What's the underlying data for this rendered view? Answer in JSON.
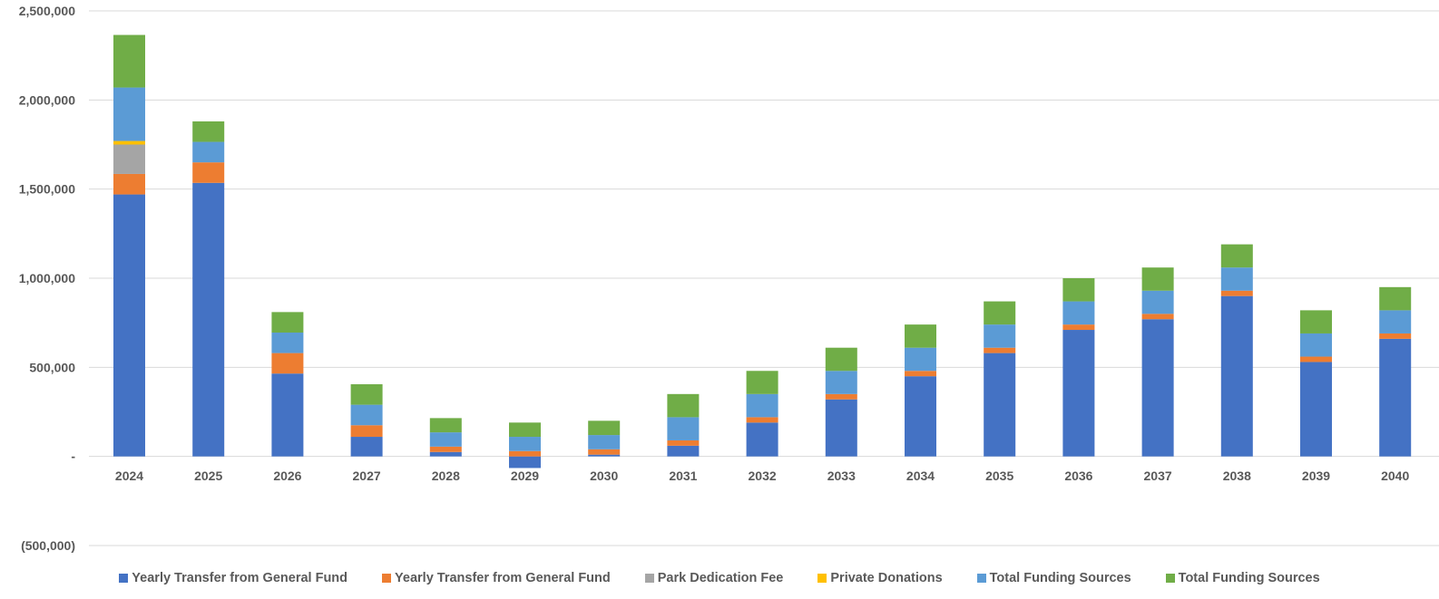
{
  "chart_data": {
    "type": "bar",
    "stacked": true,
    "title": "",
    "xlabel": "",
    "ylabel": "",
    "categories": [
      "2024",
      "2025",
      "2026",
      "2027",
      "2028",
      "2029",
      "2030",
      "2031",
      "2032",
      "2033",
      "2034",
      "2035",
      "2036",
      "2037",
      "2038",
      "2039",
      "2040"
    ],
    "ylim": [
      -500000,
      2500000
    ],
    "yticks": [
      {
        "value": 2500000,
        "label": "2,500,000"
      },
      {
        "value": 2000000,
        "label": "2,000,000"
      },
      {
        "value": 1500000,
        "label": "1,500,000"
      },
      {
        "value": 1000000,
        "label": "1,000,000"
      },
      {
        "value": 500000,
        "label": "500,000"
      },
      {
        "value": 0,
        "label": "-"
      },
      {
        "value": -500000,
        "label": "(500,000)"
      }
    ],
    "grid": true,
    "legend_position": "bottom",
    "series": [
      {
        "name": "Yearly Transfer from General Fund",
        "color": "#4472C4",
        "values": [
          1470000,
          1535000,
          465000,
          110000,
          25000,
          -65000,
          10000,
          60000,
          190000,
          320000,
          450000,
          580000,
          710000,
          770000,
          900000,
          530000,
          660000
        ]
      },
      {
        "name": "Yearly Transfer from General Fund",
        "color": "#ED7D31",
        "values": [
          115000,
          115000,
          115000,
          65000,
          30000,
          30000,
          30000,
          30000,
          30000,
          30000,
          30000,
          30000,
          30000,
          30000,
          30000,
          30000,
          30000
        ]
      },
      {
        "name": "Park Dedication Fee",
        "color": "#A5A5A5",
        "values": [
          165000,
          0,
          0,
          0,
          0,
          0,
          0,
          0,
          0,
          0,
          0,
          0,
          0,
          0,
          0,
          0,
          0
        ]
      },
      {
        "name": "Private Donations",
        "color": "#FFC000",
        "values": [
          20000,
          0,
          0,
          0,
          0,
          0,
          0,
          0,
          0,
          0,
          0,
          0,
          0,
          0,
          0,
          0,
          0
        ]
      },
      {
        "name": "Total Funding Sources",
        "color": "#5B9BD5",
        "values": [
          300000,
          115000,
          115000,
          115000,
          80000,
          80000,
          80000,
          130000,
          130000,
          130000,
          130000,
          130000,
          130000,
          130000,
          130000,
          130000,
          130000
        ]
      },
      {
        "name": "Total Funding Sources",
        "color": "#70AD47",
        "values": [
          295000,
          115000,
          115000,
          115000,
          80000,
          80000,
          80000,
          130000,
          130000,
          130000,
          130000,
          130000,
          130000,
          130000,
          130000,
          130000,
          130000
        ]
      }
    ]
  }
}
